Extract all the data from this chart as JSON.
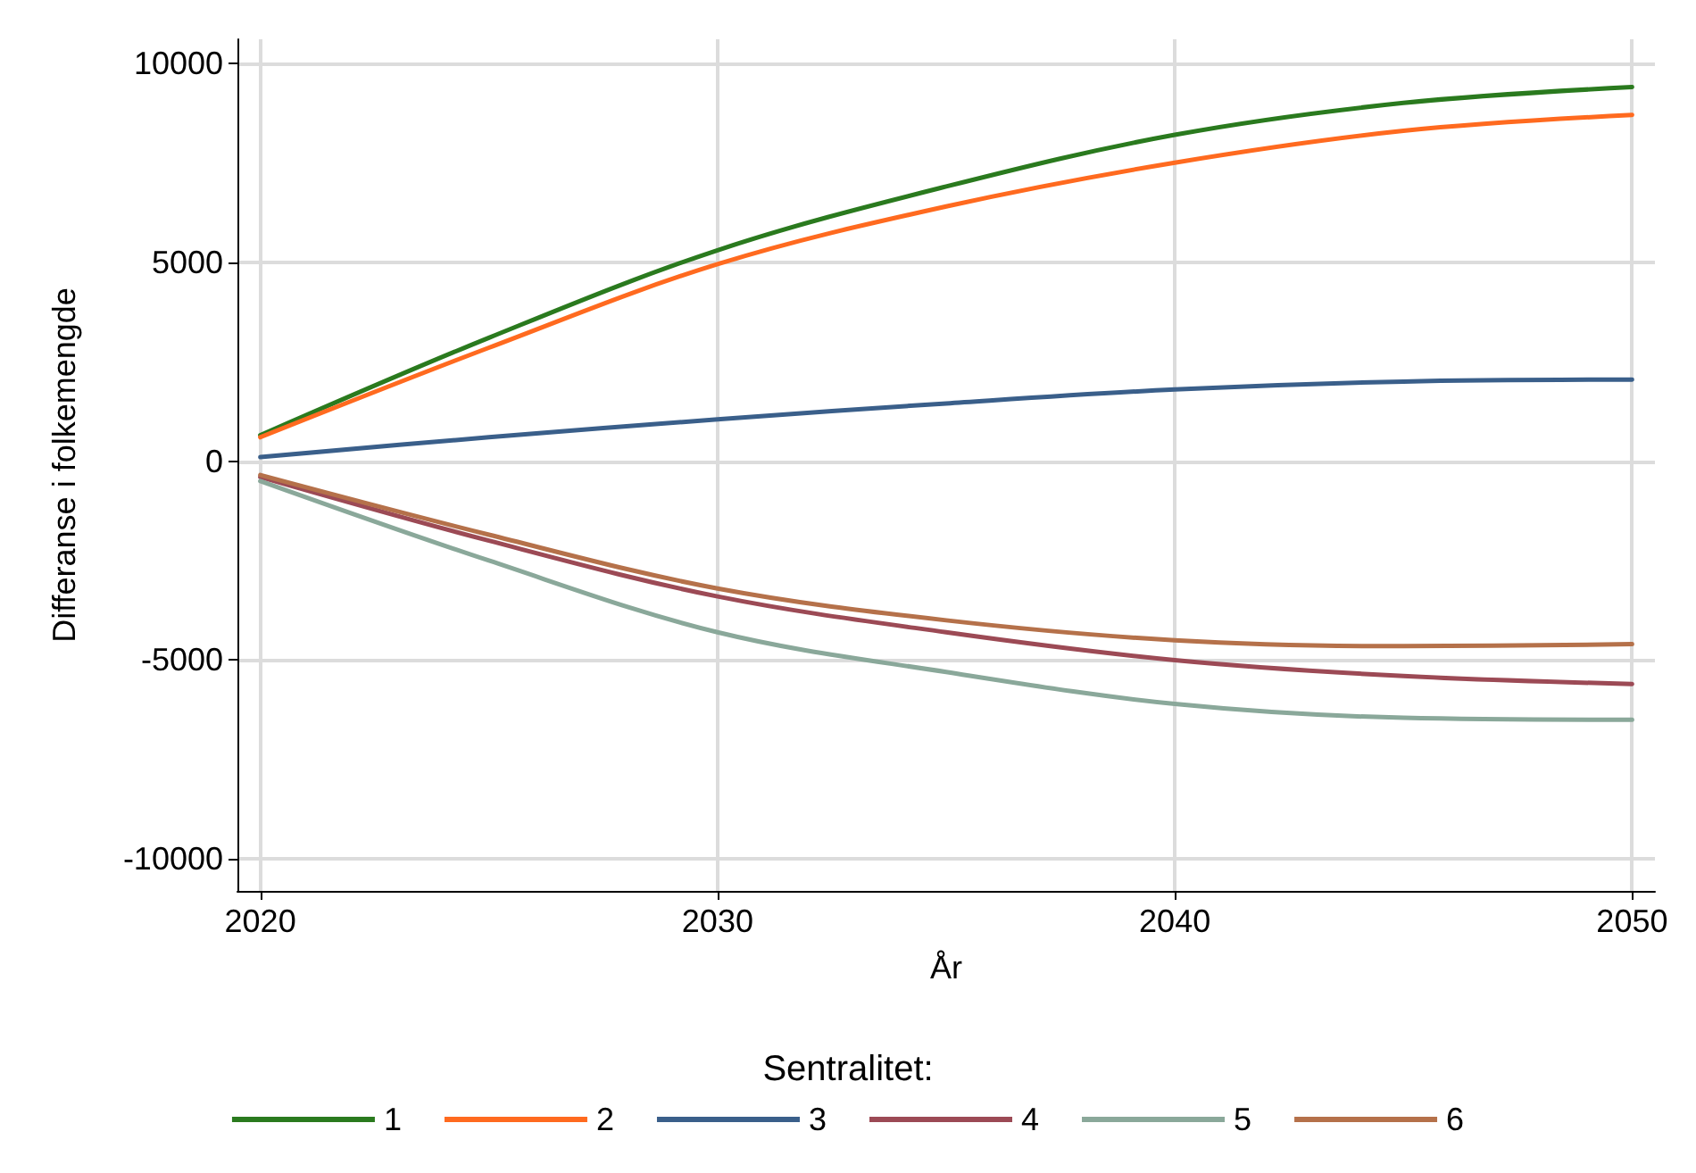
{
  "chart_data": {
    "type": "line",
    "xlabel": "År",
    "ylabel": "Differanse i folkemengde",
    "legend_title": "Sentralitet:",
    "x": [
      2020,
      2025,
      2030,
      2035,
      2040,
      2045,
      2050
    ],
    "series": [
      {
        "name": "1",
        "color": "#2a7a1e",
        "values": [
          650,
          3100,
          5300,
          6900,
          8200,
          9000,
          9400
        ]
      },
      {
        "name": "2",
        "color": "#ff6a1f",
        "values": [
          600,
          2850,
          4950,
          6400,
          7500,
          8300,
          8700
        ]
      },
      {
        "name": "3",
        "color": "#3a5f8a",
        "values": [
          100,
          600,
          1050,
          1450,
          1800,
          2000,
          2050
        ]
      },
      {
        "name": "4",
        "color": "#9c4a55",
        "values": [
          -400,
          -2000,
          -3400,
          -4300,
          -5000,
          -5400,
          -5600
        ]
      },
      {
        "name": "5",
        "color": "#8aa89a",
        "values": [
          -500,
          -2500,
          -4300,
          -5300,
          -6100,
          -6450,
          -6500
        ]
      },
      {
        "name": "6",
        "color": "#b5714a",
        "values": [
          -350,
          -1850,
          -3200,
          -4000,
          -4500,
          -4650,
          -4600
        ]
      }
    ],
    "xlim": [
      2019.5,
      2050.5
    ],
    "xticks": [
      2020,
      2030,
      2040,
      2050
    ],
    "ylim": [
      -10800,
      10600
    ],
    "yticks": [
      -10000,
      -5000,
      0,
      5000,
      10000
    ],
    "grid": true,
    "legend": "bottom",
    "marker": "none",
    "line_style": "solid"
  }
}
